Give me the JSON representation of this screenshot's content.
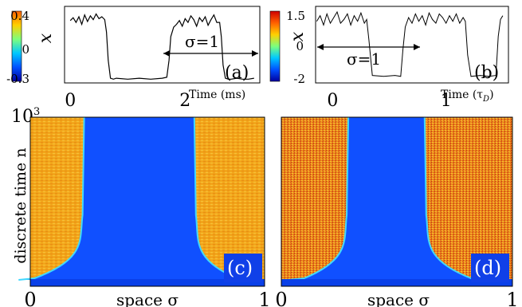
{
  "chart_data": [
    {
      "type": "line",
      "panel_label": "(a)",
      "ylabel": "x",
      "xlabel": "Time (ms)",
      "xticks": [
        "0",
        "2"
      ],
      "yticks": [
        "0.4",
        "0",
        "-0.3"
      ],
      "xlim": [
        -0.1,
        3.3
      ],
      "ylim": [
        -0.34,
        0.47
      ],
      "annotation": "σ=1",
      "colorbar": {
        "colors": [
          "#0000a0",
          "#0050ff",
          "#00c8ff",
          "#7dff7d",
          "#ffd000",
          "#ff6000"
        ],
        "range": [
          -0.3,
          0.4
        ]
      },
      "series": [
        {
          "x": [
            0,
            0.05,
            0.1,
            0.15,
            0.2,
            0.25,
            0.3,
            0.35,
            0.4,
            0.45,
            0.5,
            0.55,
            0.6,
            0.63,
            0.66,
            0.7,
            0.75,
            0.8,
            1.0,
            1.2,
            1.4,
            1.6,
            1.68,
            1.72,
            1.75,
            1.8,
            1.85,
            1.9,
            1.95,
            2.0,
            2.05,
            2.1,
            2.15,
            2.2,
            2.25,
            2.3,
            2.35,
            2.4,
            2.45,
            2.5,
            2.55,
            2.6,
            2.63,
            2.66,
            2.7,
            2.75,
            2.8,
            2.9,
            3.0,
            3.1,
            3.2
          ],
          "y": [
            0.32,
            0.35,
            0.3,
            0.36,
            0.28,
            0.38,
            0.31,
            0.37,
            0.33,
            0.39,
            0.34,
            0.36,
            0.33,
            0.2,
            -0.1,
            -0.29,
            -0.3,
            -0.29,
            -0.3,
            -0.29,
            -0.3,
            -0.29,
            -0.28,
            -0.1,
            0.15,
            0.25,
            0.28,
            0.32,
            0.26,
            0.34,
            0.3,
            0.37,
            0.33,
            0.26,
            0.35,
            0.31,
            0.36,
            0.27,
            0.33,
            0.38,
            0.3,
            0.3,
            0.15,
            -0.15,
            -0.29,
            -0.3,
            -0.3,
            -0.29,
            -0.3,
            -0.3,
            -0.29
          ]
        }
      ]
    },
    {
      "type": "line",
      "panel_label": "(b)",
      "ylabel": "x",
      "xlabel": "Time (τ",
      "xlabel_sub": "D",
      "xlabel_end": ")",
      "xticks": [
        "0",
        "1"
      ],
      "yticks": [
        "1.5",
        "0",
        "-2"
      ],
      "xlim": [
        -0.15,
        1.55
      ],
      "ylim": [
        -2.3,
        1.8
      ],
      "annotation": "σ=1",
      "colorbar": {
        "colors": [
          "#0000a0",
          "#0050ff",
          "#00c8ff",
          "#7dff7d",
          "#ffd000",
          "#ff6000",
          "#d00000"
        ],
        "range": [
          -2,
          1.5
        ]
      },
      "series": [
        {
          "x": [
            -0.14,
            -0.11,
            -0.08,
            -0.05,
            -0.02,
            0.01,
            0.04,
            0.07,
            0.1,
            0.13,
            0.16,
            0.19,
            0.22,
            0.25,
            0.28,
            0.3,
            0.32,
            0.35,
            0.45,
            0.55,
            0.6,
            0.62,
            0.64,
            0.67,
            0.7,
            0.73,
            0.76,
            0.79,
            0.82,
            0.85,
            0.88,
            0.91,
            0.94,
            0.97,
            1.0,
            1.03,
            1.06,
            1.09,
            1.12,
            1.15,
            1.17,
            1.19,
            1.22,
            1.3,
            1.38,
            1.44,
            1.46,
            1.48,
            1.5
          ],
          "y": [
            1.0,
            1.3,
            0.8,
            1.4,
            0.9,
            1.2,
            1.5,
            0.9,
            1.1,
            1.4,
            0.8,
            1.3,
            1.0,
            1.45,
            0.9,
            1.1,
            0.0,
            -1.9,
            -1.95,
            -1.9,
            -1.95,
            -0.5,
            0.7,
            1.2,
            0.9,
            1.4,
            1.0,
            1.3,
            0.8,
            1.45,
            1.1,
            0.9,
            1.4,
            1.2,
            0.9,
            1.3,
            1.0,
            1.4,
            0.9,
            1.2,
            1.0,
            -0.8,
            -1.95,
            -1.9,
            -1.95,
            -1.9,
            0.2,
            1.1,
            1.3
          ]
        }
      ]
    },
    {
      "type": "heatmap",
      "panel_label": "(c)",
      "ylabel": "discrete time n",
      "xlabel": "space σ",
      "xticks": [
        "0",
        "1"
      ],
      "ytick_top": "10",
      "ytick_top_exp": "3",
      "xlim": [
        0,
        1
      ],
      "ylim": [
        0,
        1000
      ],
      "low_state_domain": {
        "sigma_left": 0.23,
        "sigma_right": 0.7,
        "bottom_spread_left": 0.28,
        "bottom_spread_right": 0.25
      }
    },
    {
      "type": "heatmap",
      "panel_label": "(d)",
      "xlabel": "space σ",
      "xticks": [
        "0",
        "1"
      ],
      "xlim": [
        0,
        1
      ],
      "ylim": [
        0,
        1000
      ],
      "low_state_domain": {
        "sigma_left": 0.29,
        "sigma_right": 0.62,
        "bottom_spread_left": 0.26,
        "bottom_spread_right": 0.27
      }
    }
  ]
}
